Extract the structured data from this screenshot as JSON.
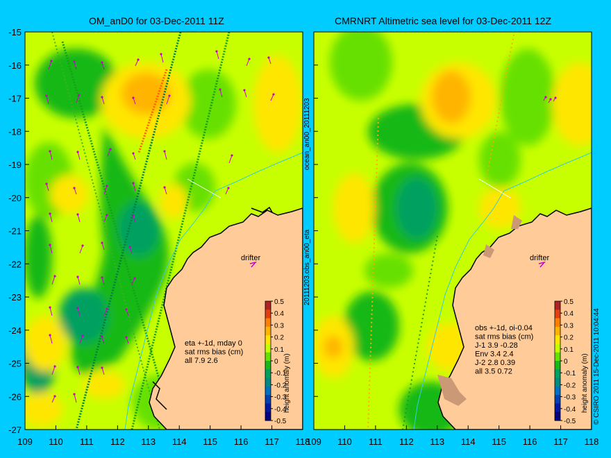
{
  "left_panel": {
    "title": "OM_anD0 for 03-Dec-2011 11Z",
    "info_lines": [
      "eta +-1d, mday 0",
      "sat rms bias (cm)",
      "all 7.9 2.6"
    ],
    "place_label": "drifter"
  },
  "right_panel": {
    "title": "CMRNRT Altimetric sea level  for 03-Dec-2011 12Z",
    "info_lines": [
      "obs +-1d, oi-0.04",
      "sat rms bias (cm)",
      "J-1    3.9 -0.28",
      "Env    3.4 2.4",
      "J-2    2.8 0.39",
      "all 3.5 0.72"
    ],
    "place_label": "drifter"
  },
  "axes": {
    "lon_ticks": [
      "109",
      "110",
      "111",
      "112",
      "113",
      "114",
      "115",
      "116",
      "117",
      "118"
    ],
    "lat_ticks": [
      "-15",
      "-16",
      "-17",
      "-18",
      "-19",
      "-20",
      "-21",
      "-22",
      "-23",
      "-24",
      "-25",
      "-26",
      "-27"
    ]
  },
  "colorbar": {
    "label": "height anomaly (m)",
    "ticks": [
      "0.5",
      "0.4",
      "0.3",
      "0.2",
      "0.1",
      "0",
      "-0.1",
      "-0.2",
      "-0.3",
      "-0.4",
      "-0.5"
    ],
    "colors": [
      "#b22222",
      "#e04010",
      "#ff8000",
      "#ffb400",
      "#ffe600",
      "#c8ff00",
      "#66e000",
      "#18b818",
      "#00a060",
      "#008a80",
      "#0070c0",
      "#0040b0",
      "#0018a0",
      "#000080"
    ]
  },
  "side_labels": {
    "middle_top": "ocean_an00_20111203",
    "middle_bottom": "20111203.obs_an00_eta",
    "right_edge": "© CSIRO 2011  15-Dec-2011 10:04:44"
  },
  "colors": {
    "background": "#00ccff",
    "land": "#ffcc99",
    "coastline": "#000000",
    "current_vector": "#cc00cc"
  }
}
